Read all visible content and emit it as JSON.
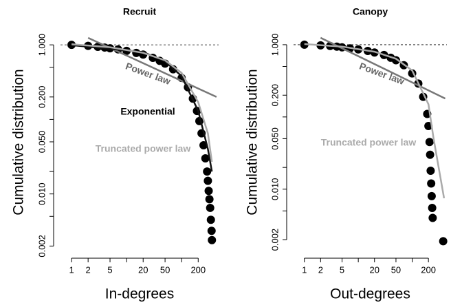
{
  "chart_data": [
    {
      "type": "scatter",
      "title": "Recruit",
      "xlabel": "In-degrees",
      "ylabel": "Cumulative distribution",
      "log_x": true,
      "log_y": true,
      "xlim": [
        0.63,
        470
      ],
      "ylim": [
        0.0017,
        1.44
      ],
      "xticks": [
        1,
        2,
        5,
        20,
        50,
        200
      ],
      "xminor_ticks": [
        10,
        100
      ],
      "yticks": [
        {
          "value": 1,
          "label": "1.000"
        },
        {
          "value": 0.2,
          "label": "0.200"
        },
        {
          "value": 0.05,
          "label": "0.050"
        },
        {
          "value": 0.01,
          "label": "0.010"
        },
        {
          "value": 0.002,
          "label": "0.002"
        }
      ],
      "yminor_ticks": [
        0.5,
        0.1,
        0.02,
        0.005
      ],
      "hline": 1,
      "series": [
        {
          "type": "points",
          "color": "#000000",
          "x": [
            1,
            2,
            3,
            4,
            5,
            7,
            10,
            15,
            20,
            30,
            40,
            50,
            70,
            100,
            130,
            160,
            190,
            210,
            230,
            250,
            270,
            290,
            300,
            310,
            320,
            330,
            340,
            350,
            355
          ],
          "values": [
            1.0,
            0.97,
            0.94,
            0.92,
            0.9,
            0.87,
            0.83,
            0.78,
            0.74,
            0.67,
            0.61,
            0.56,
            0.47,
            0.36,
            0.27,
            0.19,
            0.13,
            0.095,
            0.065,
            0.045,
            0.03,
            0.02,
            0.015,
            0.011,
            0.0085,
            0.0065,
            0.0045,
            0.0032,
            0.0024
          ]
        },
        {
          "type": "line",
          "name": "Power law",
          "color": "#777777",
          "x": [
            2,
            430
          ],
          "values": [
            1.24,
            0.2
          ]
        },
        {
          "type": "line",
          "name": "Exponential",
          "color": "#111111",
          "x": [
            1,
            20,
            50,
            100,
            200,
            300,
            355
          ],
          "values": [
            0.99,
            0.8,
            0.6,
            0.38,
            0.13,
            0.04,
            0.02
          ]
        },
        {
          "type": "line",
          "name": "Truncated power law",
          "color": "#aaaaaa",
          "x": [
            1,
            5,
            20,
            50,
            100,
            200,
            300,
            355
          ],
          "values": [
            1.02,
            0.93,
            0.78,
            0.62,
            0.42,
            0.17,
            0.065,
            0.027
          ]
        }
      ]
    },
    {
      "type": "scatter",
      "title": "Canopy",
      "xlabel": "Out-degrees",
      "ylabel": "Cumulative distribution",
      "log_x": true,
      "log_y": true,
      "xlim": [
        0.63,
        440
      ],
      "ylim": [
        0.00138,
        1.45
      ],
      "xticks": [
        1,
        2,
        5,
        20,
        50,
        200
      ],
      "xminor_ticks": [
        10,
        100
      ],
      "yticks": [
        {
          "value": 1,
          "label": "1.000"
        },
        {
          "value": 0.2,
          "label": "0.200"
        },
        {
          "value": 0.05,
          "label": "0.050"
        },
        {
          "value": 0.01,
          "label": "0.010"
        },
        {
          "value": 0.002,
          "label": "0.002"
        }
      ],
      "yminor_ticks": [
        0.5,
        0.1,
        0.02,
        0.005
      ],
      "hline": 1,
      "series": [
        {
          "type": "points",
          "color": "#000000",
          "x": [
            1,
            2,
            3,
            4,
            5,
            7,
            10,
            15,
            20,
            30,
            40,
            50,
            70,
            100,
            130,
            160,
            190,
            200,
            210,
            215,
            220,
            225,
            230,
            235,
            240,
            376
          ],
          "values": [
            1.0,
            0.98,
            0.96,
            0.94,
            0.92,
            0.89,
            0.86,
            0.82,
            0.78,
            0.72,
            0.66,
            0.61,
            0.52,
            0.4,
            0.29,
            0.19,
            0.11,
            0.075,
            0.045,
            0.03,
            0.018,
            0.012,
            0.008,
            0.0055,
            0.004,
            0.0019
          ]
        },
        {
          "type": "line",
          "name": "Power law",
          "color": "#777777",
          "x": [
            2,
            410
          ],
          "values": [
            1.245,
            0.18
          ]
        },
        {
          "type": "line",
          "name": "Truncated power law",
          "color": "#aaaaaa",
          "x": [
            1,
            5,
            20,
            50,
            100,
            200,
            250,
            390
          ],
          "values": [
            1.02,
            0.94,
            0.8,
            0.64,
            0.44,
            0.15,
            0.05,
            0.0075
          ]
        }
      ]
    }
  ]
}
